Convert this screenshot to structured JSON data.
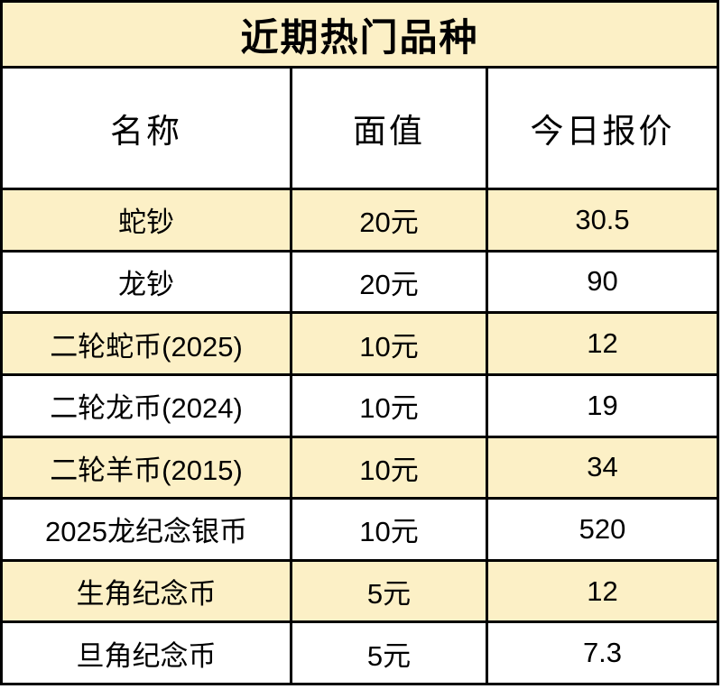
{
  "title": "近期热门品种",
  "colors": {
    "highlight": "#FCF0C6",
    "border": "#000000",
    "text": "#000000",
    "row_default": "#FFFFFF"
  },
  "table": {
    "headers": [
      "名称",
      "面值",
      "今日报价"
    ],
    "rows": [
      {
        "name": "蛇钞",
        "face_value": "20元",
        "price": "30.5",
        "highlighted": true
      },
      {
        "name": "龙钞",
        "face_value": "20元",
        "price": "90",
        "highlighted": false
      },
      {
        "name": "二轮蛇币(2025)",
        "face_value": "10元",
        "price": "12",
        "highlighted": true
      },
      {
        "name": "二轮龙币(2024)",
        "face_value": "10元",
        "price": "19",
        "highlighted": false
      },
      {
        "name": "二轮羊币(2015)",
        "face_value": "10元",
        "price": "34",
        "highlighted": true
      },
      {
        "name": "2025龙纪念银币",
        "face_value": "10元",
        "price": "520",
        "highlighted": false
      },
      {
        "name": "生角纪念币",
        "face_value": "5元",
        "price": "12",
        "highlighted": true
      },
      {
        "name": "旦角纪念币",
        "face_value": "5元",
        "price": "7.3",
        "highlighted": false
      }
    ]
  }
}
